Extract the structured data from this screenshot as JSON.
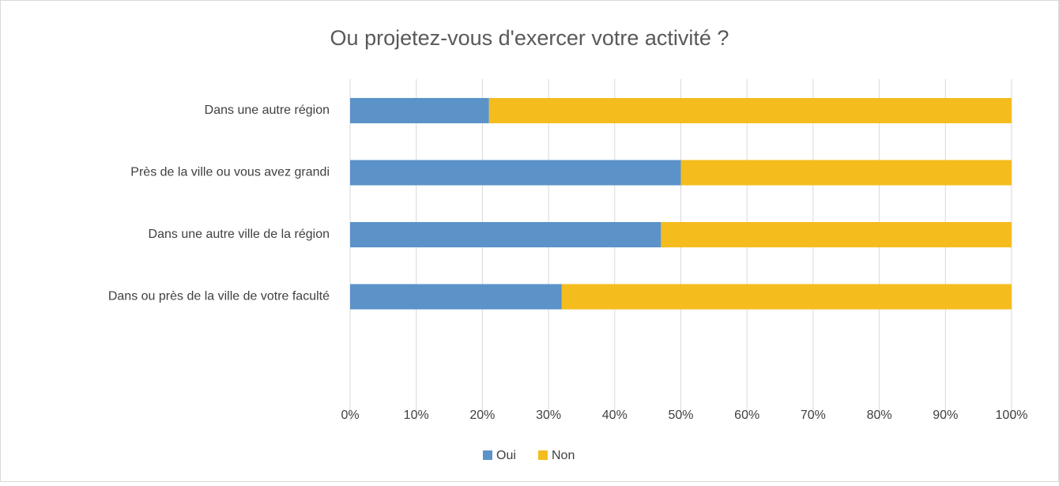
{
  "chart_data": {
    "type": "stacked_barh",
    "title": "Ou projetez-vous d'exercer votre activité ?",
    "categories": [
      "Dans une autre région",
      "Près de la ville ou vous avez grandi",
      "Dans une autre ville de la région",
      "Dans ou près de la ville de votre faculté"
    ],
    "series": [
      {
        "name": "Oui",
        "color": "#5b93c9",
        "values": [
          21,
          50,
          47,
          32
        ]
      },
      {
        "name": "Non",
        "color": "#f5bc1e",
        "values": [
          79,
          50,
          53,
          68
        ]
      }
    ],
    "xlim": [
      0,
      100
    ],
    "xticks": [
      {
        "value": 0,
        "label": "0%"
      },
      {
        "value": 10,
        "label": "10%"
      },
      {
        "value": 20,
        "label": "20%"
      },
      {
        "value": 30,
        "label": "30%"
      },
      {
        "value": 40,
        "label": "40%"
      },
      {
        "value": 50,
        "label": "50%"
      },
      {
        "value": 60,
        "label": "60%"
      },
      {
        "value": 70,
        "label": "70%"
      },
      {
        "value": 80,
        "label": "80%"
      },
      {
        "value": 90,
        "label": "90%"
      },
      {
        "value": 100,
        "label": "100%"
      }
    ],
    "grid": true,
    "legend": "bottom"
  }
}
